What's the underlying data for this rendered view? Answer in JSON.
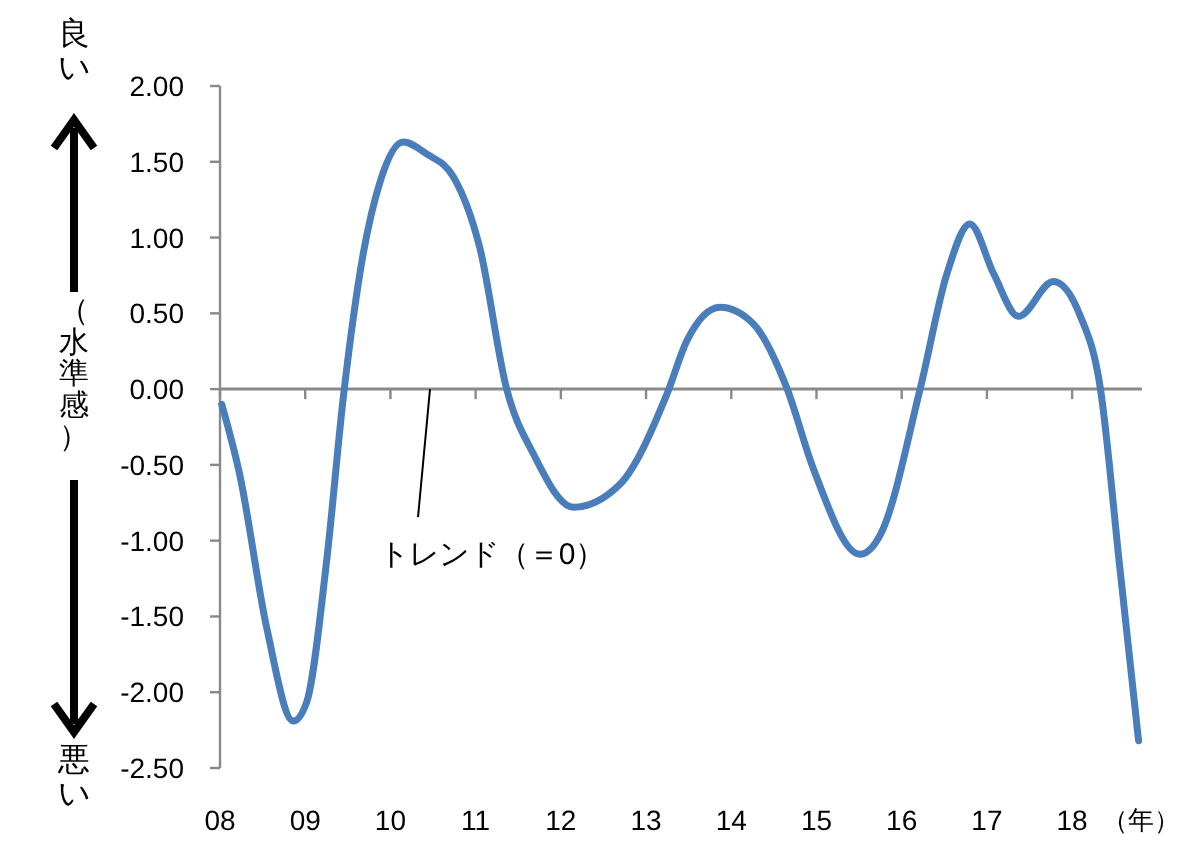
{
  "chart_data": {
    "type": "line",
    "xlabel": "（年）",
    "ylabel": "（水準感）",
    "x": [
      2008.02,
      2008.23,
      2008.55,
      2008.86,
      2009.02,
      2009.25,
      2009.45,
      2009.68,
      2009.88,
      2010.15,
      2010.43,
      2010.74,
      2011.05,
      2011.36,
      2011.68,
      2012.15,
      2012.69,
      2013.24,
      2013.48,
      2013.87,
      2014.26,
      2014.65,
      2014.96,
      2015.51,
      2015.75,
      2016.22,
      2016.53,
      2016.8,
      2017.08,
      2017.37,
      2017.78,
      2018.09,
      2018.33,
      2018.56,
      2018.78
    ],
    "series": [
      {
        "color": "#4a7ebb",
        "values": [
          -0.1,
          -0.56,
          -1.58,
          -2.19,
          -2.06,
          -1.14,
          -0.04,
          0.89,
          1.37,
          1.63,
          1.55,
          1.4,
          0.93,
          0.01,
          -0.43,
          -0.78,
          -0.63,
          -0.04,
          0.32,
          0.54,
          0.43,
          0.01,
          -0.52,
          -1.09,
          -0.96,
          0.01,
          0.76,
          1.09,
          0.76,
          0.48,
          0.71,
          0.49,
          0.01,
          -1.18,
          -2.32
        ]
      }
    ],
    "xlim": [
      2008,
      2018.82
    ],
    "xticks": [
      {
        "value": 2008,
        "label": "08"
      },
      {
        "value": 2009,
        "label": "09"
      },
      {
        "value": 2010,
        "label": "10"
      },
      {
        "value": 2011,
        "label": "11"
      },
      {
        "value": 2012,
        "label": "12"
      },
      {
        "value": 2013,
        "label": "13"
      },
      {
        "value": 2014,
        "label": "14"
      },
      {
        "value": 2015,
        "label": "15"
      },
      {
        "value": 2016,
        "label": "16"
      },
      {
        "value": 2017,
        "label": "17"
      },
      {
        "value": 2018,
        "label": "18"
      }
    ],
    "ylim": [
      -2.5,
      2
    ],
    "yticks": [
      {
        "value": 2,
        "label": "2.00"
      },
      {
        "value": 1.5,
        "label": "1.50"
      },
      {
        "value": 1,
        "label": "1.00"
      },
      {
        "value": 0.5,
        "label": "0.50"
      },
      {
        "value": 0,
        "label": "0.00"
      },
      {
        "value": -0.5,
        "label": "-0.50"
      },
      {
        "value": -1,
        "label": "-1.00"
      },
      {
        "value": -1.5,
        "label": "-1.50"
      },
      {
        "value": -2,
        "label": "-2.00"
      },
      {
        "value": -2.5,
        "label": "-2.50"
      }
    ],
    "ref_lines": [
      {
        "axis": "y",
        "value": 0,
        "label": "トレンド（＝0）",
        "color": "#898989"
      }
    ],
    "annotations": [
      "良い",
      "悪い"
    ],
    "grid": false,
    "marker": "none",
    "line_style": "solid"
  }
}
